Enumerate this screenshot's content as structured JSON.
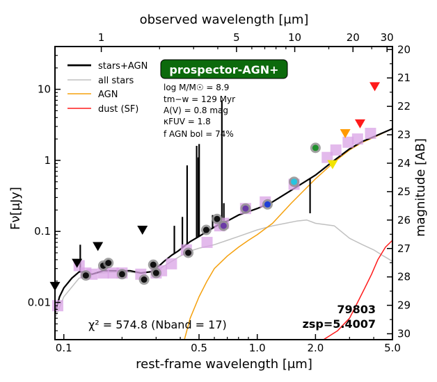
{
  "chart_data": {
    "type": "line",
    "top_xlabel": "observed wavelength [μm]",
    "xlabel": "rest-frame wavelength [μm]",
    "ylabel": "Fν[μJy]",
    "ylabel_right": "magnitude [AB]",
    "xlim": [
      0.09,
      5.0
    ],
    "ylim": [
      0.003,
      40
    ],
    "xscale": "log",
    "yscale": "log",
    "z_factor": 6.4007,
    "bottom_ticks": [
      {
        "v": 0.1,
        "label": "0.1"
      },
      {
        "v": 0.5,
        "label": "0.5"
      },
      {
        "v": 1.0,
        "label": "1.0"
      },
      {
        "v": 2.0,
        "label": "2.0"
      },
      {
        "v": 5.0,
        "label": "5.0"
      }
    ],
    "top_ticks": [
      {
        "v": 1,
        "label": "1"
      },
      {
        "v": 5,
        "label": "5"
      },
      {
        "v": 10,
        "label": "10"
      },
      {
        "v": 20,
        "label": "20"
      },
      {
        "v": 30,
        "label": "30"
      }
    ],
    "left_ticks": [
      {
        "v": 0.01,
        "label": "0.01"
      },
      {
        "v": 0.1,
        "label": "0.1"
      },
      {
        "v": 1,
        "label": "1"
      },
      {
        "v": 10,
        "label": "10"
      }
    ],
    "right_ticks": [
      {
        "m": 20,
        "label": "20"
      },
      {
        "m": 21,
        "label": "21"
      },
      {
        "m": 22,
        "label": "22"
      },
      {
        "m": 23,
        "label": "23"
      },
      {
        "m": 24,
        "label": "24"
      },
      {
        "m": 25,
        "label": "25"
      },
      {
        "m": 26,
        "label": "26"
      },
      {
        "m": 27,
        "label": "27"
      },
      {
        "m": 28,
        "label": "28"
      },
      {
        "m": 29,
        "label": "29"
      },
      {
        "m": 30,
        "label": "30"
      }
    ],
    "legend": [
      {
        "name": "stars+AGN",
        "color": "#000000"
      },
      {
        "name": "all stars",
        "color": "#c0c0c0"
      },
      {
        "name": "AGN",
        "color": "#f5a00c"
      },
      {
        "name": "dust (SF)",
        "color": "#ff1a1a"
      }
    ],
    "badge": "prospector-AGN+",
    "params": [
      "log M/M☉ = 8.9",
      "tm−w = 129 Myr",
      "A(V) = 0.8 mag",
      "κFUV = 1.8",
      "f AGN bol = 74%"
    ],
    "chi2": "χ² = 574.8 (Nband = 17)",
    "object_id": "79803",
    "zsp": "zsp=5.4007",
    "series": [
      {
        "name": "stars+AGN",
        "color": "#000000",
        "x": [
          0.09,
          0.095,
          0.1,
          0.11,
          0.12,
          0.13,
          0.14,
          0.16,
          0.18,
          0.2,
          0.22,
          0.25,
          0.28,
          0.3,
          0.33,
          0.36,
          0.39,
          0.42,
          0.45,
          0.5,
          0.55,
          0.6,
          0.65,
          0.7,
          0.8,
          0.9,
          1.0,
          1.2,
          1.5,
          2.0,
          2.5,
          3.0,
          3.5,
          4.0,
          5.0
        ],
        "y": [
          0.007,
          0.012,
          0.016,
          0.022,
          0.027,
          0.027,
          0.025,
          0.028,
          0.028,
          0.028,
          0.028,
          0.026,
          0.027,
          0.03,
          0.038,
          0.046,
          0.053,
          0.062,
          0.072,
          0.085,
          0.1,
          0.115,
          0.13,
          0.14,
          0.17,
          0.19,
          0.21,
          0.26,
          0.38,
          0.62,
          1.0,
          1.45,
          1.85,
          2.15,
          2.8
        ]
      },
      {
        "name": "all stars",
        "color": "#c0c0c0",
        "x": [
          0.09,
          0.1,
          0.12,
          0.15,
          0.2,
          0.25,
          0.3,
          0.35,
          0.4,
          0.45,
          0.5,
          0.6,
          0.7,
          0.8,
          1.0,
          1.2,
          1.4,
          1.6,
          1.8,
          2.0,
          2.5,
          3.0,
          3.5,
          4.0,
          4.5,
          5.0
        ],
        "y": [
          0.006,
          0.012,
          0.022,
          0.026,
          0.027,
          0.026,
          0.028,
          0.036,
          0.045,
          0.053,
          0.058,
          0.065,
          0.075,
          0.085,
          0.105,
          0.12,
          0.13,
          0.14,
          0.145,
          0.13,
          0.12,
          0.08,
          0.065,
          0.055,
          0.045,
          0.038
        ]
      },
      {
        "name": "AGN",
        "color": "#f5a00c",
        "x": [
          0.42,
          0.45,
          0.5,
          0.55,
          0.6,
          0.7,
          0.8,
          0.9,
          1.0,
          1.2,
          1.5,
          2.0,
          2.5,
          3.0,
          3.5,
          4.0,
          5.0
        ],
        "y": [
          0.003,
          0.006,
          0.012,
          0.02,
          0.03,
          0.045,
          0.06,
          0.075,
          0.09,
          0.13,
          0.25,
          0.55,
          0.95,
          1.4,
          1.8,
          2.1,
          2.8
        ]
      },
      {
        "name": "dust (SF)",
        "color": "#ff1a1a",
        "x": [
          2.2,
          2.6,
          3.0,
          3.3,
          3.6,
          3.9,
          4.2,
          4.6,
          5.0
        ],
        "y": [
          0.003,
          0.004,
          0.006,
          0.01,
          0.016,
          0.025,
          0.04,
          0.06,
          0.075
        ]
      }
    ],
    "emission_lines": [
      {
        "x": 0.1216,
        "y": 0.065
      },
      {
        "x": 0.3727,
        "y": 0.12
      },
      {
        "x": 0.4102,
        "y": 0.16
      },
      {
        "x": 0.434,
        "y": 0.85
      },
      {
        "x": 0.4861,
        "y": 1.6
      },
      {
        "x": 0.4959,
        "y": 1.1
      },
      {
        "x": 0.5007,
        "y": 1.7
      },
      {
        "x": 0.5876,
        "y": 0.17
      },
      {
        "x": 0.63,
        "y": 0.12
      },
      {
        "x": 0.6563,
        "y": 7.0
      },
      {
        "x": 0.672,
        "y": 0.25
      },
      {
        "x": 1.083,
        "y": 0.22
      },
      {
        "x": 1.875,
        "y": 0.18
      }
    ],
    "model_photometry": {
      "x": [
        0.093,
        0.12,
        0.13,
        0.14,
        0.16,
        0.18,
        0.2,
        0.25,
        0.3,
        0.32,
        0.36,
        0.43,
        0.55,
        0.64,
        0.67,
        0.87,
        1.1,
        1.55,
        2.3,
        2.55,
        2.95,
        3.3,
        3.85
      ],
      "y": [
        0.009,
        0.033,
        0.026,
        0.025,
        0.026,
        0.026,
        0.026,
        0.025,
        0.026,
        0.028,
        0.035,
        0.055,
        0.07,
        0.12,
        0.13,
        0.21,
        0.26,
        0.46,
        1.1,
        1.4,
        1.8,
        2.0,
        2.4
      ]
    },
    "observed_photometry": [
      {
        "x": 0.13,
        "y": 0.024,
        "color": "#111111"
      },
      {
        "x": 0.16,
        "y": 0.033,
        "color": "#111111"
      },
      {
        "x": 0.17,
        "y": 0.036,
        "color": "#111111"
      },
      {
        "x": 0.2,
        "y": 0.025,
        "color": "#111111"
      },
      {
        "x": 0.26,
        "y": 0.021,
        "color": "#111111"
      },
      {
        "x": 0.29,
        "y": 0.034,
        "color": "#111111"
      },
      {
        "x": 0.3,
        "y": 0.026,
        "color": "#111111"
      },
      {
        "x": 0.44,
        "y": 0.05,
        "color": "#111111"
      },
      {
        "x": 0.545,
        "y": 0.105,
        "color": "#111111"
      },
      {
        "x": 0.62,
        "y": 0.15,
        "color": "#111111"
      },
      {
        "x": 0.67,
        "y": 0.12,
        "color": "#6b3aa6"
      },
      {
        "x": 0.87,
        "y": 0.21,
        "color": "#6b3aa6"
      },
      {
        "x": 1.13,
        "y": 0.24,
        "color": "#1f3fd6"
      },
      {
        "x": 1.55,
        "y": 0.5,
        "color": "#27c4e0"
      },
      {
        "x": 2.0,
        "y": 1.5,
        "color": "#1f8f2c"
      }
    ],
    "upper_limits": [
      {
        "x": 0.09,
        "y": 0.017,
        "color": "#000000"
      },
      {
        "x": 0.117,
        "y": 0.036,
        "color": "#000000"
      },
      {
        "x": 0.15,
        "y": 0.062,
        "color": "#000000"
      },
      {
        "x": 0.255,
        "y": 0.105,
        "color": "#000000"
      },
      {
        "x": 2.45,
        "y": 0.88,
        "color": "#f2e400"
      },
      {
        "x": 2.85,
        "y": 2.4,
        "color": "#ff9a00"
      },
      {
        "x": 3.4,
        "y": 3.3,
        "color": "#ff1a1a"
      },
      {
        "x": 4.05,
        "y": 11.0,
        "color": "#ff1a1a"
      }
    ]
  }
}
